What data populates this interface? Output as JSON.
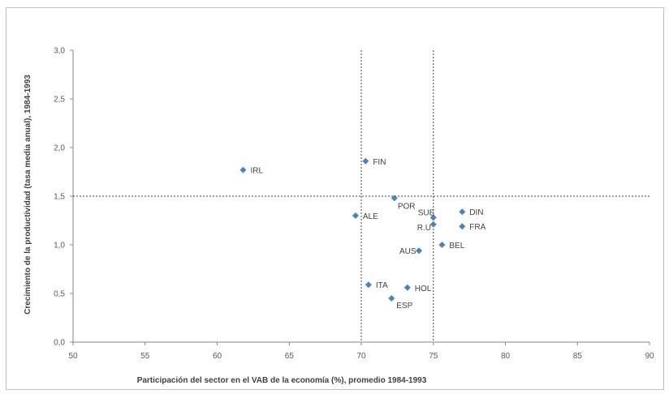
{
  "chart_data": {
    "type": "scatter",
    "title": "",
    "xlabel": "Participación  del sector en el VAB de la economía (%), promedio 1984-1993",
    "ylabel": "Crecimiento de la productividad  (tasa media anual), 1984-1993",
    "xlim": [
      50,
      90
    ],
    "ylim": [
      0,
      3
    ],
    "x_ticks": [
      "50",
      "55",
      "60",
      "65",
      "70",
      "75",
      "80",
      "85",
      "90"
    ],
    "y_ticks": [
      "0,0",
      "0,5",
      "1,0",
      "1,5",
      "2,0",
      "2,5",
      "3,0"
    ],
    "grid": false,
    "legend": "none",
    "marker_color": "#4f81bd",
    "reference_lines": {
      "vertical": [
        70,
        75
      ],
      "horizontal": [
        1.5
      ]
    },
    "points": [
      {
        "label": "IRL",
        "x": 61.8,
        "y": 1.77
      },
      {
        "label": "FIN",
        "x": 70.3,
        "y": 1.86
      },
      {
        "label": "POR",
        "x": 72.3,
        "y": 1.48
      },
      {
        "label": "ALE",
        "x": 69.6,
        "y": 1.3
      },
      {
        "label": "SUE",
        "x": 75.0,
        "y": 1.28
      },
      {
        "label": "DIN",
        "x": 77.0,
        "y": 1.34
      },
      {
        "label": "R.U",
        "x": 75.0,
        "y": 1.21
      },
      {
        "label": "FRA",
        "x": 77.0,
        "y": 1.19
      },
      {
        "label": "BEL",
        "x": 75.6,
        "y": 1.0
      },
      {
        "label": "AUS",
        "x": 74.0,
        "y": 0.94
      },
      {
        "label": "ITA",
        "x": 70.5,
        "y": 0.59
      },
      {
        "label": "HOL",
        "x": 73.2,
        "y": 0.56
      },
      {
        "label": "ESP",
        "x": 72.1,
        "y": 0.45
      }
    ]
  }
}
